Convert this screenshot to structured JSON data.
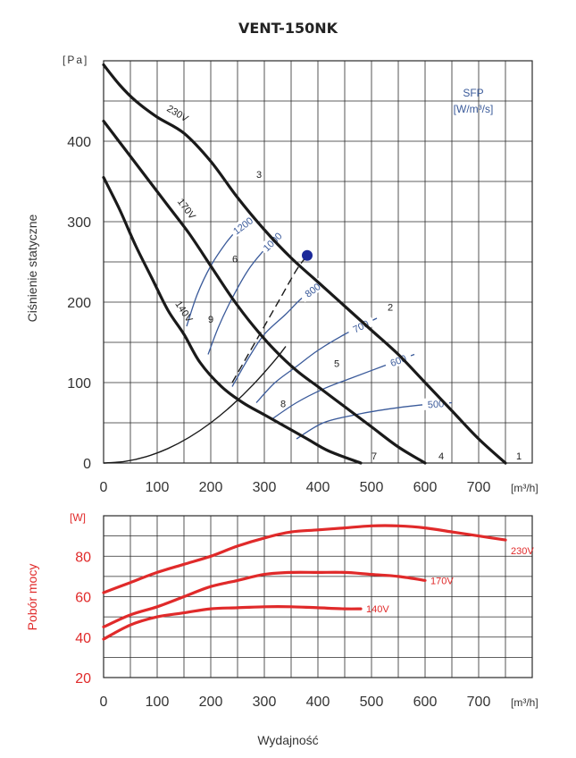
{
  "title": "VENT-150NK",
  "colors": {
    "curve": "#1a1a1a",
    "sfp": "#3a5a9a",
    "power": "#e02a2a",
    "grid": "#2a2a2a",
    "point": "#1c2a9a"
  },
  "chart_data": [
    {
      "type": "line",
      "title": "VENT-150NK",
      "xlabel": "Wydajność",
      "ylabel": "Ciśnienie statyczne",
      "y_unit": "[Pa]",
      "x_unit": "[m³/h]",
      "xlim": [
        0,
        800
      ],
      "ylim": [
        0,
        500
      ],
      "x_ticks": [
        "0",
        "100",
        "200",
        "300",
        "400",
        "500",
        "600",
        "700"
      ],
      "y_ticks": [
        "0",
        "100",
        "200",
        "300",
        "400"
      ],
      "grid": true,
      "series": [
        {
          "name": "230V",
          "x": [
            0,
            30,
            60,
            100,
            150,
            200,
            250,
            300,
            350,
            400,
            450,
            500,
            550,
            600,
            650,
            700,
            750
          ],
          "y": [
            495,
            470,
            450,
            430,
            410,
            375,
            330,
            290,
            255,
            225,
            195,
            165,
            135,
            100,
            65,
            30,
            0
          ]
        },
        {
          "name": "170V",
          "x": [
            0,
            40,
            80,
            120,
            160,
            200,
            240,
            280,
            320,
            360,
            400,
            450,
            500,
            550,
            600
          ],
          "y": [
            425,
            390,
            355,
            320,
            285,
            245,
            205,
            170,
            140,
            115,
            95,
            70,
            45,
            20,
            0
          ]
        },
        {
          "name": "140V",
          "x": [
            0,
            30,
            60,
            90,
            120,
            150,
            180,
            220,
            260,
            300,
            340,
            380,
            420,
            480
          ],
          "y": [
            355,
            315,
            270,
            230,
            190,
            160,
            125,
            95,
            75,
            60,
            45,
            30,
            15,
            0
          ]
        }
      ],
      "sfp_curves": [
        {
          "label": "1200",
          "x": [
            155,
            175,
            200,
            230,
            250,
            270
          ],
          "y": [
            170,
            210,
            245,
            275,
            290,
            300
          ]
        },
        {
          "label": "1000",
          "x": [
            195,
            215,
            240,
            270,
            300,
            330
          ],
          "y": [
            135,
            170,
            205,
            240,
            265,
            285
          ]
        },
        {
          "label": "800",
          "x": [
            240,
            270,
            300,
            340,
            370,
            410
          ],
          "y": [
            95,
            130,
            160,
            185,
            205,
            225
          ]
        },
        {
          "label": "700",
          "x": [
            285,
            320,
            360,
            400,
            450,
            510
          ],
          "y": [
            75,
            100,
            120,
            140,
            160,
            180
          ]
        },
        {
          "label": "600",
          "x": [
            315,
            360,
            410,
            460,
            520,
            580
          ],
          "y": [
            55,
            75,
            92,
            105,
            120,
            135
          ]
        },
        {
          "label": "500",
          "x": [
            360,
            410,
            470,
            530,
            590,
            650
          ],
          "y": [
            30,
            50,
            60,
            67,
            72,
            75
          ]
        }
      ],
      "system_curves": [
        {
          "style": "solid",
          "x": [
            0,
            40,
            80,
            120,
            160,
            200,
            240,
            280,
            320,
            340
          ],
          "y": [
            0,
            2,
            8,
            18,
            32,
            50,
            72,
            98,
            128,
            145
          ]
        },
        {
          "style": "dashed",
          "x": [
            240,
            270,
            300,
            330,
            360,
            380
          ],
          "y": [
            100,
            135,
            170,
            205,
            240,
            258
          ]
        }
      ],
      "points": [
        {
          "label": "1",
          "x": 760,
          "y": 0
        },
        {
          "label": "2",
          "x": 520,
          "y": 185
        },
        {
          "label": "3",
          "x": 275,
          "y": 350
        },
        {
          "label": "4",
          "x": 615,
          "y": 0
        },
        {
          "label": "5",
          "x": 420,
          "y": 115
        },
        {
          "label": "6",
          "x": 230,
          "y": 245
        },
        {
          "label": "7",
          "x": 490,
          "y": 0
        },
        {
          "label": "8",
          "x": 320,
          "y": 65
        },
        {
          "label": "9",
          "x": 185,
          "y": 170
        }
      ],
      "operating_point": {
        "x": 380,
        "y": 258
      },
      "sfp_legend": [
        "SFP",
        "[W/m³/s]"
      ]
    },
    {
      "type": "line",
      "ylabel": "Pobór mocy",
      "y_unit": "[W]",
      "x_unit": "[m³/h]",
      "xlim": [
        0,
        800
      ],
      "ylim": [
        20,
        100
      ],
      "x_ticks": [
        "0",
        "100",
        "200",
        "300",
        "400",
        "500",
        "600",
        "700"
      ],
      "y_ticks": [
        "20",
        "40",
        "60",
        "80"
      ],
      "grid": true,
      "series": [
        {
          "name": "230V",
          "x": [
            0,
            50,
            100,
            150,
            200,
            250,
            300,
            350,
            400,
            450,
            500,
            550,
            600,
            650,
            700,
            750
          ],
          "y": [
            62,
            67,
            72,
            76,
            80,
            85,
            89,
            92,
            93,
            94,
            95,
            95,
            94,
            92,
            90,
            88
          ]
        },
        {
          "name": "170V",
          "x": [
            0,
            50,
            100,
            150,
            200,
            250,
            300,
            350,
            400,
            450,
            500,
            550,
            600
          ],
          "y": [
            45,
            51,
            55,
            60,
            65,
            68,
            71,
            72,
            72,
            72,
            71,
            70,
            68
          ]
        },
        {
          "name": "140V",
          "x": [
            0,
            50,
            100,
            150,
            200,
            250,
            300,
            350,
            400,
            450,
            480
          ],
          "y": [
            39,
            46,
            50,
            52,
            54,
            54.5,
            55,
            55,
            54.5,
            54,
            54
          ]
        }
      ]
    }
  ]
}
